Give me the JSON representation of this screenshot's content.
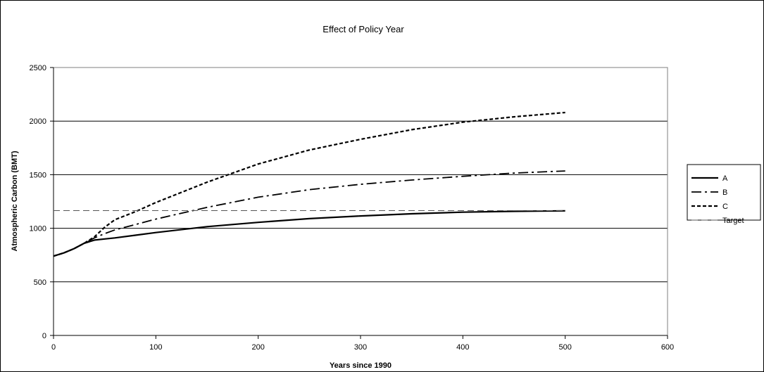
{
  "chart_data": {
    "type": "line",
    "title": "Effect of Policy Year",
    "xlabel": "Years since 1990",
    "ylabel": "Atmospheric Carbon (BMT)",
    "xlim": [
      0,
      600
    ],
    "ylim": [
      0,
      2500
    ],
    "xticks": [
      "0",
      "100",
      "200",
      "300",
      "400",
      "500",
      "600"
    ],
    "yticks": [
      "0",
      "500",
      "1000",
      "1500",
      "2000",
      "2500"
    ],
    "grid": "horizontal",
    "legend_position": "right",
    "series": [
      {
        "name": "A",
        "style": "solid",
        "x": [
          0,
          10,
          20,
          30,
          40,
          50,
          60,
          80,
          100,
          150,
          200,
          250,
          300,
          350,
          400,
          450,
          500
        ],
        "y": [
          740,
          770,
          810,
          860,
          890,
          900,
          910,
          935,
          960,
          1015,
          1055,
          1090,
          1115,
          1135,
          1150,
          1158,
          1163
        ]
      },
      {
        "name": "B",
        "style": "dash-dot",
        "x": [
          0,
          10,
          20,
          30,
          40,
          50,
          60,
          80,
          100,
          150,
          200,
          250,
          300,
          350,
          400,
          450,
          500
        ],
        "y": [
          740,
          770,
          810,
          860,
          910,
          950,
          985,
          1035,
          1085,
          1195,
          1290,
          1360,
          1410,
          1450,
          1485,
          1515,
          1535
        ]
      },
      {
        "name": "C",
        "style": "dotted",
        "x": [
          0,
          10,
          20,
          30,
          40,
          50,
          60,
          80,
          100,
          150,
          200,
          250,
          300,
          350,
          400,
          450,
          500
        ],
        "y": [
          740,
          770,
          810,
          860,
          920,
          1010,
          1080,
          1155,
          1240,
          1430,
          1600,
          1730,
          1830,
          1920,
          1990,
          2040,
          2080
        ]
      },
      {
        "name": "Target",
        "style": "dashed",
        "x": [
          0,
          500
        ],
        "y": [
          1165,
          1165
        ]
      }
    ]
  }
}
